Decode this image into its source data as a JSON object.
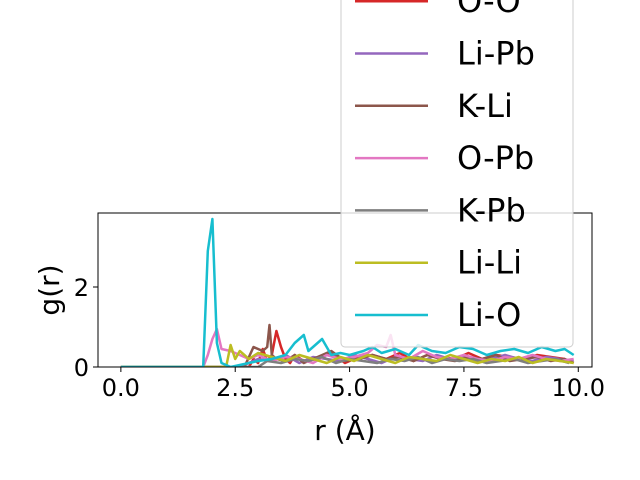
{
  "chart_data": {
    "type": "line",
    "xlabel": "r (Å)",
    "ylabel": "g(r)",
    "xlim": [
      -0.5,
      10.3
    ],
    "ylim": [
      0,
      3.85
    ],
    "xticks": [
      0.0,
      2.5,
      5.0,
      7.5,
      10.0
    ],
    "xtick_labels": [
      "0.0",
      "2.5",
      "5.0",
      "7.5",
      "10.0"
    ],
    "yticks": [
      0,
      2
    ],
    "ytick_labels": [
      "0",
      "2"
    ],
    "grid": false,
    "legend_position": "upper-right, extending above the axes",
    "legend_labels_visible": [
      "O-O",
      "Li-Pb",
      "K-Li",
      "O-Pb",
      "K-Pb",
      "Li-Li",
      "Li-O"
    ],
    "series": [
      {
        "name": "O-O",
        "color": "#d62728",
        "x": [
          0.0,
          2.8,
          2.9,
          3.0,
          3.1,
          3.2,
          3.3,
          3.4,
          3.5,
          3.6,
          3.7,
          3.8,
          4.0,
          4.3,
          4.6,
          4.9,
          5.2,
          5.5,
          5.8,
          6.1,
          6.4,
          6.7,
          7.0,
          7.3,
          7.6,
          7.9,
          8.2,
          8.5,
          8.8,
          9.1,
          9.4,
          9.7,
          9.9
        ],
        "y": [
          0.0,
          0.0,
          0.2,
          0.1,
          0.45,
          0.15,
          0.3,
          0.9,
          0.5,
          0.2,
          0.1,
          0.3,
          0.15,
          0.2,
          0.35,
          0.1,
          0.25,
          0.3,
          0.2,
          0.35,
          0.15,
          0.3,
          0.25,
          0.2,
          0.35,
          0.2,
          0.3,
          0.25,
          0.2,
          0.3,
          0.25,
          0.2,
          0.1
        ]
      },
      {
        "name": "Li-Pb",
        "color": "#9467bd",
        "x": [
          0.0,
          2.6,
          2.8,
          3.0,
          3.3,
          3.6,
          3.9,
          4.2,
          4.5,
          4.8,
          5.1,
          5.4,
          5.7,
          6.0,
          6.3,
          6.6,
          6.9,
          7.2,
          7.5,
          7.8,
          8.1,
          8.4,
          8.7,
          9.0,
          9.3,
          9.6,
          9.9
        ],
        "y": [
          0.0,
          0.0,
          0.1,
          0.2,
          0.15,
          0.3,
          0.1,
          0.25,
          0.2,
          0.15,
          0.3,
          0.2,
          0.1,
          0.25,
          0.2,
          0.15,
          0.3,
          0.2,
          0.25,
          0.15,
          0.2,
          0.3,
          0.2,
          0.15,
          0.25,
          0.2,
          0.15
        ]
      },
      {
        "name": "K-Li",
        "color": "#8c564b",
        "x": [
          0.0,
          2.7,
          2.9,
          3.0,
          3.1,
          3.2,
          3.25,
          3.3,
          3.4,
          3.6,
          3.8,
          4.0,
          4.3,
          4.6,
          4.9,
          5.2,
          5.5,
          5.8,
          6.1,
          6.4,
          6.7,
          7.0,
          7.3,
          7.6,
          7.9,
          8.2,
          8.5,
          8.8,
          9.1,
          9.4,
          9.7,
          9.9
        ],
        "y": [
          0.0,
          0.0,
          0.5,
          0.45,
          0.4,
          0.5,
          1.05,
          0.3,
          0.2,
          0.15,
          0.3,
          0.1,
          0.25,
          0.4,
          0.15,
          0.2,
          0.3,
          0.2,
          0.25,
          0.15,
          0.3,
          0.2,
          0.15,
          0.25,
          0.2,
          0.3,
          0.15,
          0.2,
          0.25,
          0.15,
          0.2,
          0.1
        ]
      },
      {
        "name": "O-Pb",
        "color": "#e377c2",
        "x": [
          0.0,
          1.8,
          1.9,
          2.0,
          2.1,
          2.2,
          2.4,
          2.6,
          2.8,
          3.0,
          3.3,
          3.6,
          3.9,
          4.2,
          4.5,
          4.8,
          5.1,
          5.4,
          5.6,
          5.8,
          5.9,
          6.0,
          6.3,
          6.6,
          6.9,
          7.2,
          7.5,
          7.8,
          8.1,
          8.4,
          8.7,
          9.0,
          9.3,
          9.6,
          9.9
        ],
        "y": [
          0.0,
          0.0,
          0.3,
          0.7,
          0.95,
          0.45,
          0.4,
          0.3,
          0.2,
          0.3,
          0.15,
          0.25,
          0.2,
          0.1,
          0.3,
          0.2,
          0.25,
          0.35,
          0.55,
          0.5,
          0.8,
          0.3,
          0.2,
          0.4,
          0.25,
          0.2,
          0.3,
          0.2,
          0.15,
          0.25,
          0.2,
          0.3,
          0.2,
          0.15,
          0.2
        ]
      },
      {
        "name": "K-Pb",
        "color": "#7f7f7f",
        "x": [
          0.0,
          3.0,
          3.2,
          3.5,
          3.8,
          4.1,
          4.4,
          4.7,
          5.0,
          5.3,
          5.6,
          5.9,
          6.2,
          6.5,
          6.8,
          7.1,
          7.4,
          7.7,
          8.0,
          8.3,
          8.6,
          8.9,
          9.2,
          9.5,
          9.8
        ],
        "y": [
          0.0,
          0.0,
          0.15,
          0.1,
          0.2,
          0.15,
          0.25,
          0.1,
          0.2,
          0.15,
          0.1,
          0.2,
          0.15,
          0.25,
          0.1,
          0.2,
          0.15,
          0.2,
          0.1,
          0.15,
          0.2,
          0.1,
          0.15,
          0.2,
          0.1
        ]
      },
      {
        "name": "Li-Li",
        "color": "#bcbd22",
        "x": [
          0.0,
          2.3,
          2.4,
          2.5,
          2.6,
          2.7,
          2.8,
          3.0,
          3.3,
          3.6,
          3.9,
          4.2,
          4.5,
          4.8,
          5.1,
          5.4,
          5.7,
          6.0,
          6.3,
          6.6,
          6.9,
          7.2,
          7.5,
          7.8,
          8.1,
          8.4,
          8.7,
          9.0,
          9.3,
          9.6,
          9.9
        ],
        "y": [
          0.0,
          0.0,
          0.55,
          0.2,
          0.4,
          0.3,
          0.2,
          0.35,
          0.25,
          0.15,
          0.3,
          0.2,
          0.1,
          0.25,
          0.15,
          0.3,
          0.2,
          0.1,
          0.25,
          0.2,
          0.15,
          0.3,
          0.2,
          0.1,
          0.2,
          0.15,
          0.25,
          0.1,
          0.2,
          0.15,
          0.1
        ]
      },
      {
        "name": "Li-O",
        "color": "#17becf",
        "x": [
          0.0,
          1.8,
          1.9,
          2.0,
          2.1,
          2.2,
          2.4,
          2.6,
          2.8,
          3.0,
          3.3,
          3.6,
          3.8,
          4.0,
          4.1,
          4.2,
          4.4,
          4.6,
          4.8,
          5.0,
          5.3,
          5.5,
          5.7,
          6.0,
          6.3,
          6.5,
          6.8,
          7.1,
          7.4,
          7.7,
          8.0,
          8.3,
          8.6,
          8.9,
          9.2,
          9.5,
          9.7,
          9.9
        ],
        "y": [
          0.0,
          0.0,
          2.9,
          3.7,
          0.6,
          0.1,
          0.0,
          0.05,
          0.1,
          0.15,
          0.2,
          0.3,
          0.6,
          0.8,
          0.4,
          0.5,
          0.7,
          0.3,
          0.35,
          0.3,
          0.4,
          0.5,
          0.35,
          0.45,
          0.3,
          0.55,
          0.4,
          0.35,
          0.5,
          0.45,
          0.3,
          0.4,
          0.45,
          0.35,
          0.5,
          0.4,
          0.45,
          0.3
        ]
      }
    ]
  }
}
